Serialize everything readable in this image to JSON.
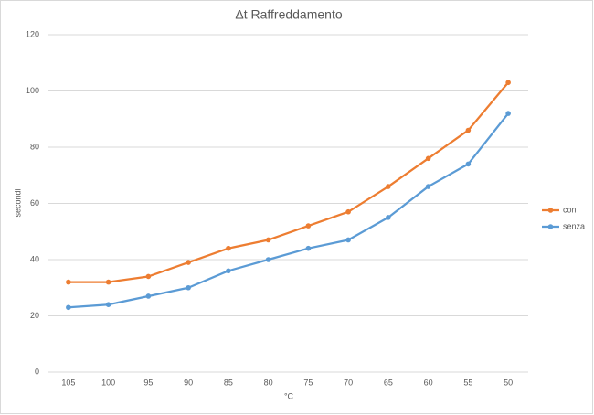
{
  "chart_data": {
    "type": "line",
    "title": "Δt Raffreddamento",
    "x_label": "°C",
    "y_label": "secondi",
    "categories": [
      "105",
      "100",
      "95",
      "90",
      "85",
      "80",
      "75",
      "70",
      "65",
      "60",
      "55",
      "50"
    ],
    "series": [
      {
        "name": "con",
        "color": "#ed7d31",
        "values": [
          32,
          32,
          34,
          39,
          44,
          47,
          52,
          57,
          66,
          76,
          86,
          103
        ]
      },
      {
        "name": "senza",
        "color": "#5b9bd5",
        "values": [
          23,
          24,
          27,
          30,
          36,
          40,
          44,
          47,
          55,
          66,
          74,
          92
        ]
      }
    ],
    "ylim": [
      0,
      120
    ],
    "yticks": [
      0,
      20,
      40,
      60,
      80,
      100,
      120
    ],
    "grid": true,
    "legend": "right"
  }
}
